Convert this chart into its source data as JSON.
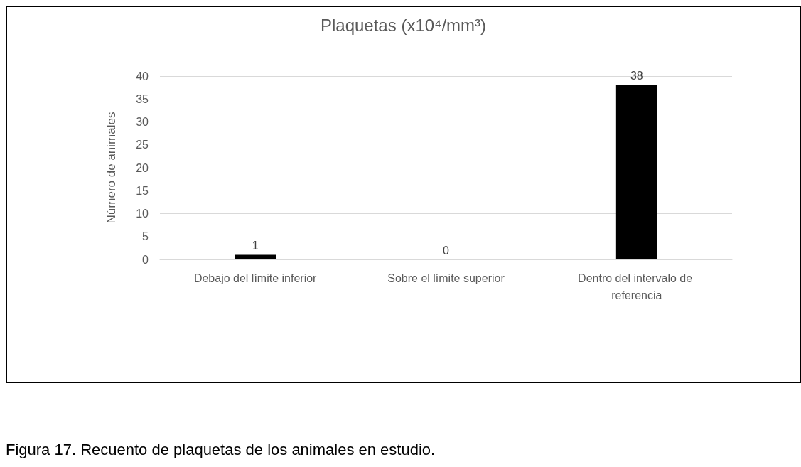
{
  "chart_data": {
    "type": "bar",
    "title": "Plaquetas (x10⁴/mm³)",
    "ylabel": "Número de animales",
    "categories": [
      "Debajo del límite inferior",
      "Sobre el límite superior",
      "Dentro del intervalo de referencia"
    ],
    "values": [
      1,
      0,
      38
    ],
    "color": "#000000",
    "ylim": [
      0,
      40
    ],
    "yticks": [
      0,
      5,
      10,
      15,
      20,
      25,
      30,
      35,
      40
    ],
    "grid": "y",
    "data_labels": true,
    "annotations": [
      "Figura 17. Recuento de plaquetas de los animales en estudio."
    ]
  }
}
